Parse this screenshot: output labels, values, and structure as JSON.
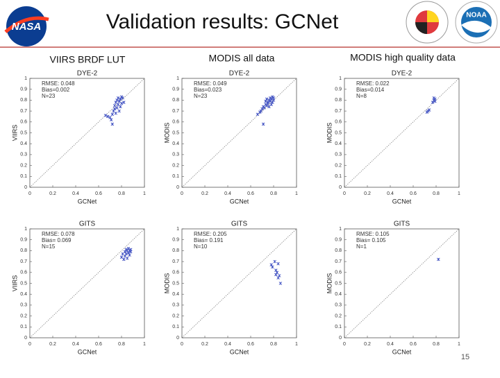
{
  "slide": {
    "title": "Validation results: GCNet",
    "columns": [
      "VIIRS BRDF LUT",
      "MODIS all data",
      "MODIS high quality data"
    ],
    "page": "15"
  },
  "logos": {
    "nasa": "NASA",
    "noaa": "NOAA"
  },
  "chart_data": [
    {
      "type": "scatter",
      "title": "DYE-2",
      "xlabel": "GCNet",
      "ylabel": "VIIRS",
      "annotations": [
        "RMSE: 0.048",
        "Bias=0.002",
        "N=23"
      ],
      "color": "#3b4cc0",
      "x": [
        0.66,
        0.68,
        0.7,
        0.71,
        0.72,
        0.72,
        0.73,
        0.74,
        0.74,
        0.75,
        0.75,
        0.76,
        0.76,
        0.77,
        0.77,
        0.78,
        0.78,
        0.79,
        0.79,
        0.8,
        0.8,
        0.81,
        0.82
      ],
      "values": [
        0.66,
        0.65,
        0.64,
        0.62,
        0.58,
        0.67,
        0.7,
        0.72,
        0.75,
        0.68,
        0.78,
        0.8,
        0.73,
        0.76,
        0.82,
        0.79,
        0.7,
        0.81,
        0.74,
        0.83,
        0.77,
        0.82,
        0.78
      ],
      "xlim": [
        0,
        1
      ],
      "ylim": [
        0,
        1
      ],
      "xticks": [
        0,
        0.2,
        0.4,
        0.6,
        0.8,
        1
      ],
      "yticks": [
        0,
        0.1,
        0.2,
        0.3,
        0.4,
        0.5,
        0.6,
        0.7,
        0.8,
        0.9,
        1
      ]
    },
    {
      "type": "scatter",
      "title": "DYE-2",
      "xlabel": "GCNet",
      "ylabel": "MODIS",
      "annotations": [
        "RMSE: 0.049",
        "Bias=0.023",
        "N=23"
      ],
      "color": "#3b4cc0",
      "x": [
        0.66,
        0.68,
        0.69,
        0.7,
        0.71,
        0.71,
        0.72,
        0.73,
        0.73,
        0.74,
        0.74,
        0.75,
        0.75,
        0.76,
        0.76,
        0.77,
        0.77,
        0.78,
        0.78,
        0.79,
        0.79,
        0.8,
        0.8
      ],
      "values": [
        0.67,
        0.69,
        0.7,
        0.72,
        0.58,
        0.74,
        0.73,
        0.76,
        0.79,
        0.75,
        0.81,
        0.78,
        0.77,
        0.8,
        0.74,
        0.82,
        0.79,
        0.81,
        0.76,
        0.83,
        0.78,
        0.8,
        0.82
      ],
      "xlim": [
        0,
        1
      ],
      "ylim": [
        0,
        1
      ],
      "xticks": [
        0,
        0.2,
        0.4,
        0.6,
        0.8,
        1
      ],
      "yticks": [
        0,
        0.1,
        0.2,
        0.3,
        0.4,
        0.5,
        0.6,
        0.7,
        0.8,
        0.9,
        1
      ]
    },
    {
      "type": "scatter",
      "title": "DYE-2",
      "xlabel": "GCNet",
      "ylabel": "MODIS",
      "annotations": [
        "RMSE: 0.022",
        "Bias=0.014",
        "N=8"
      ],
      "color": "#3b4cc0",
      "x": [
        0.72,
        0.73,
        0.74,
        0.77,
        0.78,
        0.78,
        0.79,
        0.79
      ],
      "values": [
        0.69,
        0.7,
        0.71,
        0.78,
        0.8,
        0.82,
        0.79,
        0.81
      ],
      "xlim": [
        0,
        1
      ],
      "ylim": [
        0,
        1
      ],
      "xticks": [
        0,
        0.2,
        0.4,
        0.6,
        0.8,
        1
      ],
      "yticks": [
        0,
        0.1,
        0.2,
        0.3,
        0.4,
        0.5,
        0.6,
        0.7,
        0.8,
        0.9,
        1
      ]
    },
    {
      "type": "scatter",
      "title": "GITS",
      "xlabel": "GCNet",
      "ylabel": "VIIRS",
      "annotations": [
        "RMSE: 0.078",
        "Bias= 0.069",
        "N=15"
      ],
      "color": "#3b4cc0",
      "x": [
        0.8,
        0.81,
        0.82,
        0.83,
        0.83,
        0.84,
        0.84,
        0.85,
        0.85,
        0.86,
        0.86,
        0.87,
        0.87,
        0.88,
        0.88
      ],
      "values": [
        0.74,
        0.77,
        0.72,
        0.79,
        0.75,
        0.81,
        0.77,
        0.8,
        0.73,
        0.82,
        0.78,
        0.8,
        0.76,
        0.81,
        0.79
      ],
      "xlim": [
        0,
        1
      ],
      "ylim": [
        0,
        1
      ],
      "xticks": [
        0,
        0.2,
        0.4,
        0.6,
        0.8,
        1
      ],
      "yticks": [
        0,
        0.1,
        0.2,
        0.3,
        0.4,
        0.5,
        0.6,
        0.7,
        0.8,
        0.9,
        1
      ]
    },
    {
      "type": "scatter",
      "title": "GITS",
      "xlabel": "GCNet",
      "ylabel": "MODIS",
      "annotations": [
        "RMSE: 0.205",
        "Bias= 0.191",
        "N=10"
      ],
      "color": "#3b4cc0",
      "x": [
        0.78,
        0.79,
        0.81,
        0.82,
        0.82,
        0.83,
        0.84,
        0.84,
        0.85,
        0.86
      ],
      "values": [
        0.67,
        0.65,
        0.7,
        0.62,
        0.58,
        0.6,
        0.68,
        0.55,
        0.57,
        0.5
      ],
      "xlim": [
        0,
        1
      ],
      "ylim": [
        0,
        1
      ],
      "xticks": [
        0,
        0.2,
        0.4,
        0.6,
        0.8,
        1
      ],
      "yticks": [
        0,
        0.1,
        0.2,
        0.3,
        0.4,
        0.5,
        0.6,
        0.7,
        0.8,
        0.9,
        1
      ]
    },
    {
      "type": "scatter",
      "title": "GITS",
      "xlabel": "GCNet",
      "ylabel": "MODIS",
      "annotations": [
        "RMSE: 0.105",
        "Bias= 0.105",
        "N=1"
      ],
      "color": "#3b4cc0",
      "x": [
        0.82
      ],
      "values": [
        0.72
      ],
      "xlim": [
        0,
        1
      ],
      "ylim": [
        0,
        1
      ],
      "xticks": [
        0,
        0.2,
        0.4,
        0.6,
        0.8,
        1
      ],
      "yticks": [
        0,
        0.1,
        0.2,
        0.3,
        0.4,
        0.5,
        0.6,
        0.7,
        0.8,
        0.9,
        1
      ]
    }
  ]
}
